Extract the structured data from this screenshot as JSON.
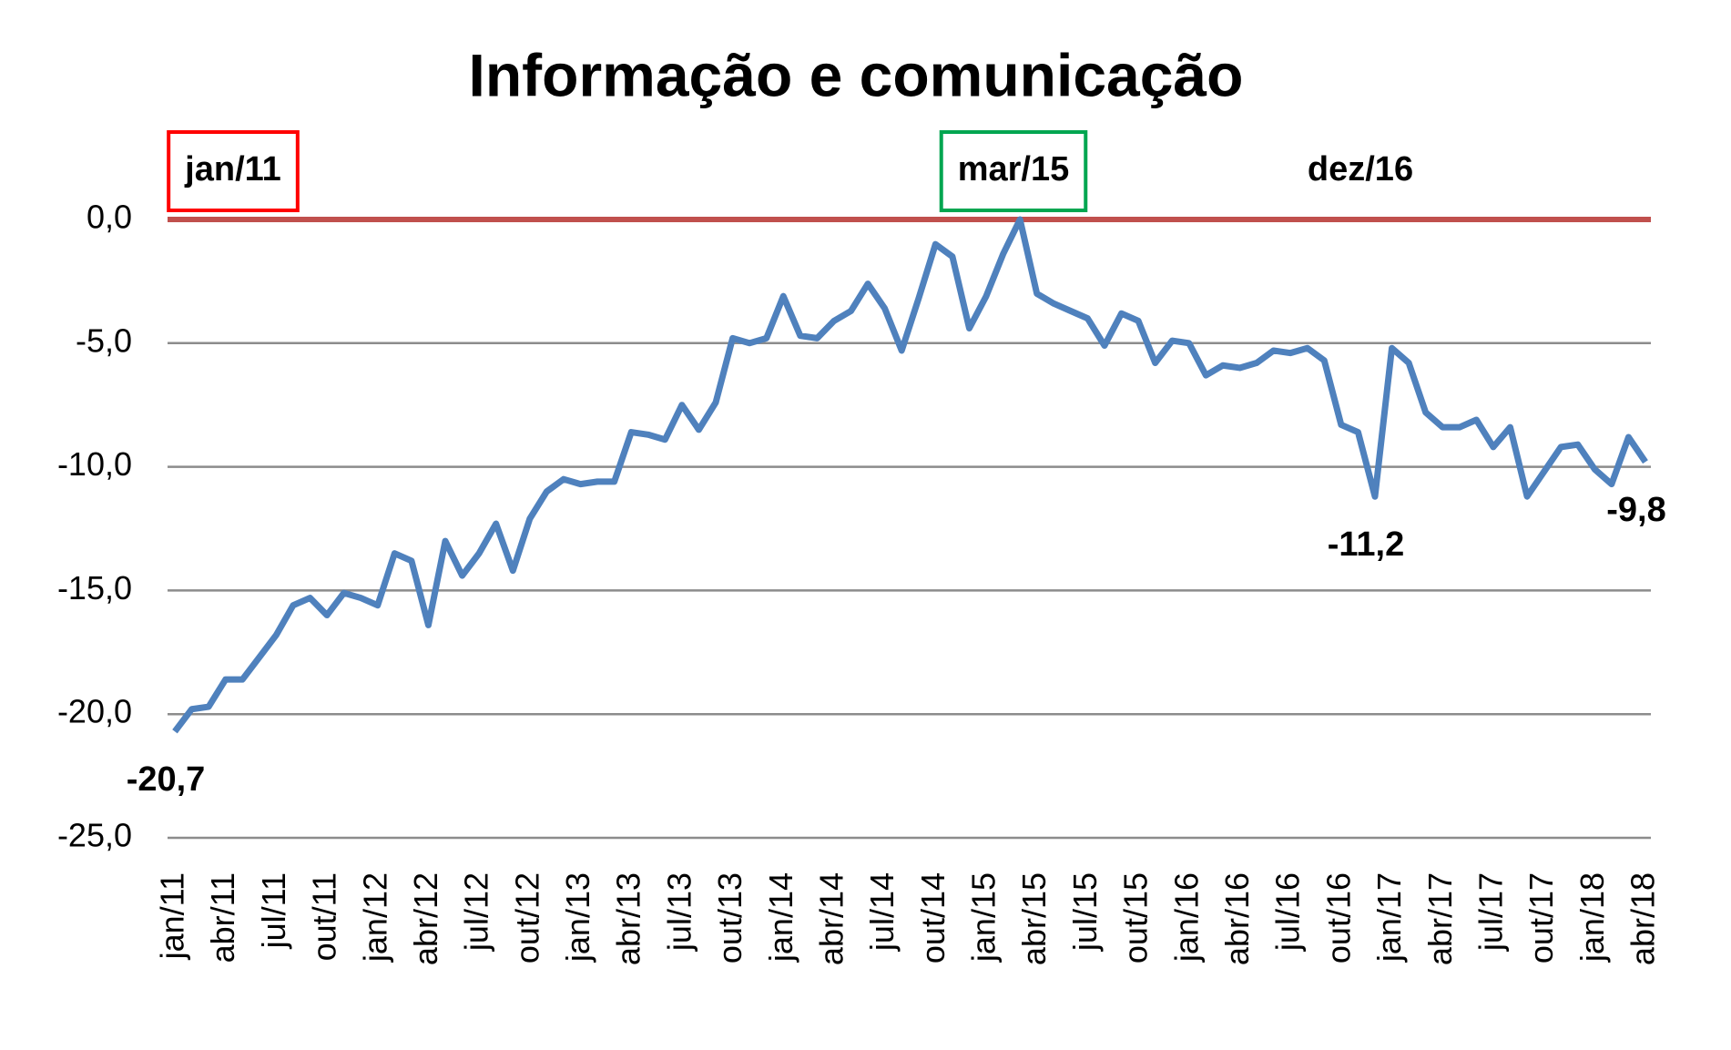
{
  "chart_data": {
    "type": "line",
    "title": "Informação e comunicação",
    "categories": [
      "jan/11",
      null,
      null,
      "abr/11",
      null,
      null,
      "jul/11",
      null,
      null,
      "out/11",
      null,
      null,
      "jan/12",
      null,
      null,
      "abr/12",
      null,
      null,
      "jul/12",
      null,
      null,
      "out/12",
      null,
      null,
      "jan/13",
      null,
      null,
      "abr/13",
      null,
      null,
      "jul/13",
      null,
      null,
      "out/13",
      null,
      null,
      "jan/14",
      null,
      null,
      "abr/14",
      null,
      null,
      "jul/14",
      null,
      null,
      "out/14",
      null,
      null,
      "jan/15",
      null,
      null,
      "abr/15",
      null,
      null,
      "jul/15",
      null,
      null,
      "out/15",
      null,
      null,
      "jan/16",
      null,
      null,
      "abr/16",
      null,
      null,
      "jul/16",
      null,
      null,
      "out/16",
      null,
      null,
      "jan/17",
      null,
      null,
      "abr/17",
      null,
      null,
      "jul/17",
      null,
      null,
      "out/17",
      null,
      null,
      "jan/18",
      null,
      null,
      "abr/18"
    ],
    "series": [
      {
        "color": "#4f81bd",
        "values": [
          -20.7,
          -19.8,
          -19.7,
          -18.6,
          -18.6,
          -17.7,
          -16.8,
          -15.6,
          -15.3,
          -16.0,
          -15.1,
          -15.3,
          -15.6,
          -13.5,
          -13.8,
          -16.4,
          -13.0,
          -14.4,
          -13.5,
          -12.3,
          -14.2,
          -12.1,
          -11.0,
          -10.5,
          -10.7,
          -10.6,
          -10.6,
          -8.6,
          -8.7,
          -8.9,
          -7.5,
          -8.5,
          -7.4,
          -4.8,
          -5.0,
          -4.8,
          -3.1,
          -4.7,
          -4.8,
          -4.1,
          -3.7,
          -2.6,
          -3.6,
          -5.3,
          -3.2,
          -1.0,
          -1.5,
          -4.4,
          -3.1,
          -1.4,
          0.0,
          -3.0,
          -3.4,
          -3.7,
          -4.0,
          -5.1,
          -3.8,
          -4.1,
          -5.8,
          -4.9,
          -5.0,
          -6.3,
          -5.9,
          -6.0,
          -5.8,
          -5.3,
          -5.4,
          -5.2,
          -5.7,
          -8.3,
          -8.6,
          -11.2,
          -5.2,
          -5.8,
          -7.8,
          -8.4,
          -8.4,
          -8.1,
          -9.2,
          -8.4,
          -11.2,
          -10.2,
          -9.2,
          -9.1,
          -10.1,
          -10.7,
          -8.8,
          -9.8
        ],
        "value_labels": [
          "-20,7",
          null,
          null,
          null,
          null,
          null,
          null,
          null,
          null,
          null,
          null,
          null,
          null,
          null,
          null,
          null,
          null,
          null,
          null,
          null,
          null,
          null,
          null,
          null,
          null,
          null,
          null,
          null,
          null,
          null,
          null,
          null,
          null,
          null,
          null,
          null,
          null,
          null,
          null,
          null,
          null,
          null,
          null,
          null,
          null,
          null,
          null,
          null,
          null,
          null,
          null,
          null,
          null,
          null,
          null,
          null,
          null,
          null,
          null,
          null,
          null,
          null,
          null,
          null,
          null,
          null,
          null,
          null,
          null,
          null,
          null,
          "-11,2",
          null,
          null,
          null,
          null,
          null,
          null,
          null,
          null,
          null,
          null,
          null,
          null,
          null,
          null,
          null,
          "-9,8"
        ]
      }
    ],
    "ylim": [
      -25,
      0
    ],
    "yticks": [
      {
        "value": 0,
        "label": "0,0"
      },
      {
        "value": -5,
        "label": "-5,0"
      },
      {
        "value": -10,
        "label": "-10,0"
      },
      {
        "value": -15,
        "label": "-15,0"
      },
      {
        "value": -20,
        "label": "-20,0"
      },
      {
        "value": -25,
        "label": "-25,0"
      }
    ],
    "grid": true,
    "reference_line": {
      "value": 0,
      "color": "#c0504d"
    },
    "annotations": [
      {
        "text": "jan/11",
        "color": "#ff0000"
      },
      {
        "text": "mar/15",
        "color": "#00a650"
      },
      {
        "text": "dez/16"
      }
    ]
  }
}
